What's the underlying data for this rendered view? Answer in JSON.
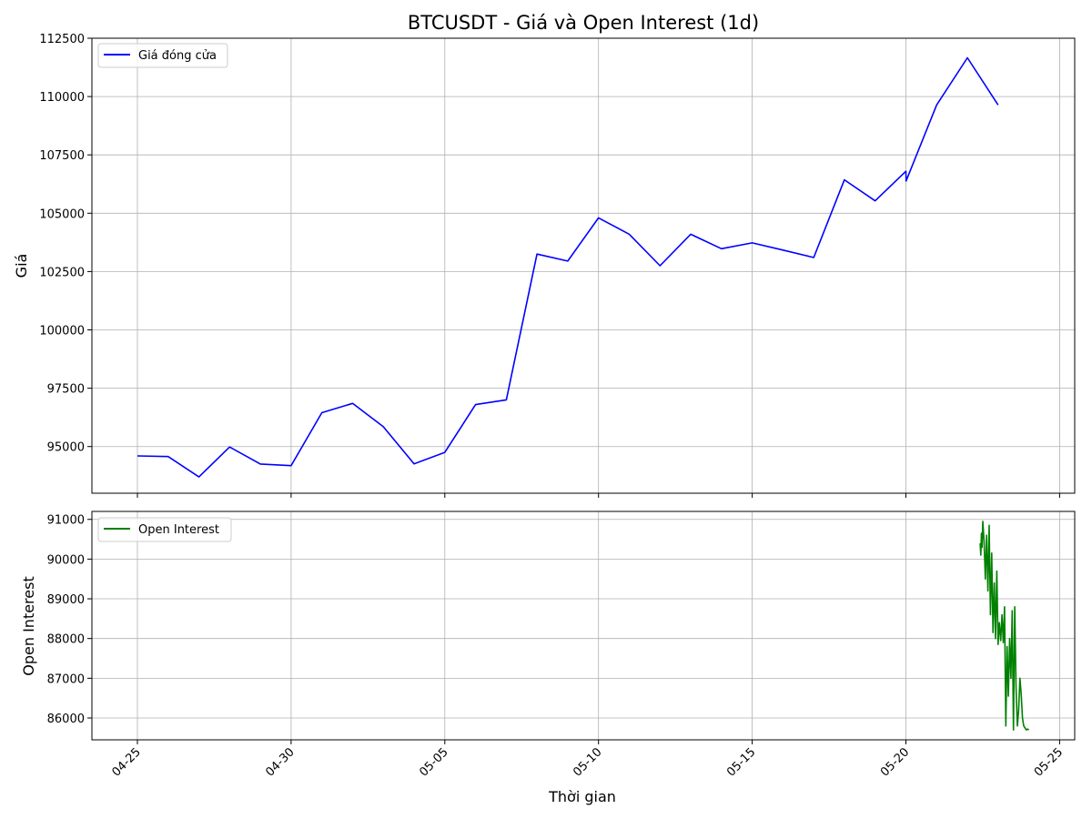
{
  "chart_data": [
    {
      "type": "line",
      "title": "BTCUSDT - Giá và Open Interest (1d)",
      "xlabel": "",
      "ylabel": "Giá",
      "ylim": [
        93000,
        112500
      ],
      "yticks": [
        "95000",
        "97500",
        "100000",
        "102500",
        "105000",
        "107500",
        "110000",
        "112500"
      ],
      "xticks": [
        "04-25",
        "04-30",
        "05-05",
        "05-10",
        "05-15",
        "05-20",
        "05-25"
      ],
      "grid": true,
      "legend_position": "top-left",
      "series": [
        {
          "name": "Giá đóng cửa",
          "color": "#0000ff",
          "x": [
            "2025-04-25",
            "2025-04-26",
            "2025-04-27",
            "2025-04-28",
            "2025-04-29",
            "2025-04-30",
            "2025-05-01",
            "2025-05-02",
            "2025-05-03",
            "2025-05-04",
            "2025-05-05",
            "2025-05-06",
            "2025-05-07",
            "2025-05-08",
            "2025-05-09",
            "2025-05-10",
            "2025-05-11",
            "2025-05-12",
            "2025-05-13",
            "2025-05-14",
            "2025-05-15",
            "2025-05-16",
            "2025-05-17",
            "2025-05-18",
            "2025-05-19",
            "2025-05-20 00:00",
            "2025-05-20 00:10",
            "2025-05-21",
            "2025-05-22",
            "2025-05-23"
          ],
          "y": [
            94600,
            94570,
            93700,
            94980,
            94250,
            94180,
            96450,
            96850,
            95850,
            94260,
            94750,
            96800,
            97000,
            103250,
            102950,
            104800,
            104100,
            102750,
            104100,
            103480,
            103730,
            103420,
            103100,
            106430,
            105530,
            106800,
            106380,
            109640,
            111660,
            109640
          ]
        }
      ]
    },
    {
      "type": "line",
      "title": "",
      "xlabel": "Thời gian",
      "ylabel": "Open Interest",
      "ylim": [
        85450,
        91200
      ],
      "yticks": [
        "86000",
        "87000",
        "88000",
        "89000",
        "90000",
        "91000"
      ],
      "xticks": [
        "04-25",
        "04-30",
        "05-05",
        "05-10",
        "05-15",
        "05-20",
        "05-25"
      ],
      "grid": true,
      "legend_position": "top-left",
      "series": [
        {
          "name": "Open Interest",
          "color": "#008000",
          "x": [
            "2025-05-22 10:00",
            "2025-05-22 10:30",
            "2025-05-22 11:00",
            "2025-05-22 11:30",
            "2025-05-22 12:00",
            "2025-05-22 13:00",
            "2025-05-22 14:00",
            "2025-05-22 15:00",
            "2025-05-22 16:00",
            "2025-05-22 17:00",
            "2025-05-22 18:00",
            "2025-05-22 19:00",
            "2025-05-22 20:00",
            "2025-05-22 21:00",
            "2025-05-22 22:00",
            "2025-05-22 23:00",
            "2025-05-23 00:00",
            "2025-05-23 01:00",
            "2025-05-23 02:00",
            "2025-05-23 03:00",
            "2025-05-23 04:00",
            "2025-05-23 05:00",
            "2025-05-23 06:00",
            "2025-05-23 07:00",
            "2025-05-23 08:00",
            "2025-05-23 09:00",
            "2025-05-23 10:00",
            "2025-05-23 11:00",
            "2025-05-23 12:00",
            "2025-05-23 13:00",
            "2025-05-23 14:00",
            "2025-05-23 15:00",
            "2025-05-23 16:00",
            "2025-05-23 17:00",
            "2025-05-23 18:00",
            "2025-05-23 19:00",
            "2025-05-23 20:00",
            "2025-05-23 21:00",
            "2025-05-23 22:00",
            "2025-05-23 23:00",
            "2025-05-24 00:00"
          ],
          "y": [
            90400,
            90100,
            90650,
            90300,
            90950,
            90450,
            89500,
            90600,
            89200,
            90850,
            88600,
            90150,
            88150,
            89400,
            88000,
            89700,
            87850,
            88400,
            87950,
            88600,
            87900,
            88800,
            85800,
            87800,
            86550,
            88000,
            87000,
            88700,
            85700,
            88800,
            86800,
            85800,
            86200,
            87000,
            86600,
            86000,
            85800,
            85750,
            85700,
            85720,
            85700
          ]
        }
      ]
    }
  ]
}
